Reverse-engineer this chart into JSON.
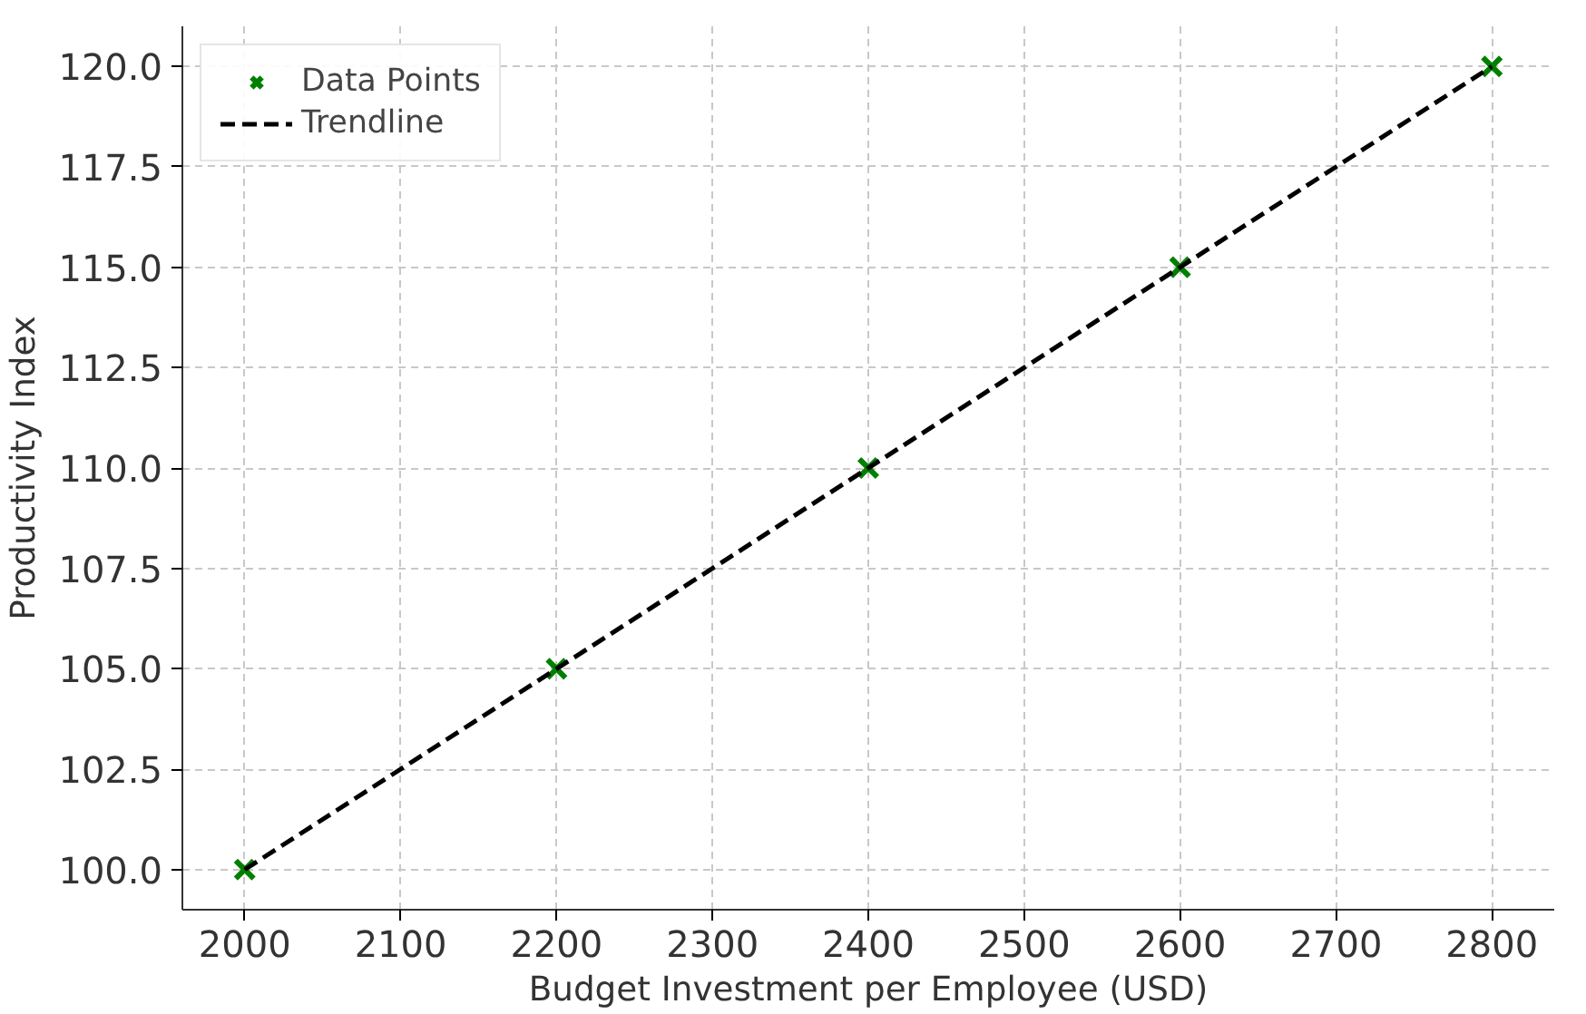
{
  "chart_data": {
    "type": "scatter",
    "xlabel": "Budget Investment per Employee (USD)",
    "ylabel": "Productivity Index",
    "series": [
      {
        "name": "Data Points",
        "color": "#008000",
        "marker": "cross",
        "x": [
          2000,
          2200,
          2400,
          2600,
          2800
        ],
        "values": [
          100,
          105,
          110,
          115,
          120
        ]
      },
      {
        "name": "Trendline",
        "type": "line",
        "color": "#000000",
        "line_style": "dashed",
        "marker": "none",
        "x": [
          2000,
          2800
        ],
        "values": [
          100,
          120
        ]
      }
    ],
    "xlim": [
      1960,
      2840
    ],
    "ylim": [
      99,
      121
    ],
    "xticks": [
      2000,
      2100,
      2200,
      2300,
      2400,
      2500,
      2600,
      2700,
      2800
    ],
    "yticks": [
      {
        "value": 100,
        "label": "100.0"
      },
      {
        "value": 102.5,
        "label": "102.5"
      },
      {
        "value": 105,
        "label": "105.0"
      },
      {
        "value": 107.5,
        "label": "107.5"
      },
      {
        "value": 110,
        "label": "110.0"
      },
      {
        "value": 112.5,
        "label": "112.5"
      },
      {
        "value": 115,
        "label": "115.0"
      },
      {
        "value": 117.5,
        "label": "117.5"
      },
      {
        "value": 120,
        "label": "120.0"
      }
    ],
    "grid": true,
    "legend": "top left"
  }
}
